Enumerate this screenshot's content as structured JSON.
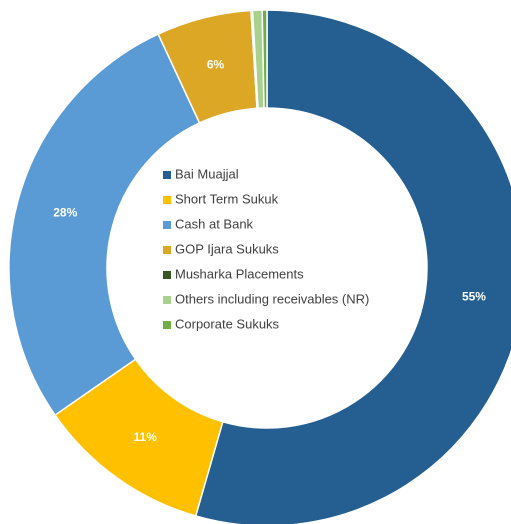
{
  "chart_data": {
    "type": "donut",
    "categories": [
      "Bai Muajjal",
      "Short Term Sukuk",
      "Cash at Bank",
      "GOP Ijara Sukuks",
      "Musharka Placements",
      "Others including receivables (NR)",
      "Corporate Sukuks"
    ],
    "values": [
      55,
      11,
      28,
      6,
      0.1,
      0.6,
      0.3
    ],
    "value_labels": [
      "55%",
      "11%",
      "28%",
      "6%",
      null,
      null,
      null
    ],
    "colors": [
      "#255e91",
      "#ffc000",
      "#5b9bd5",
      "#dda726",
      "#375623",
      "#a9d18e",
      "#70ad47"
    ],
    "legend": "center"
  }
}
